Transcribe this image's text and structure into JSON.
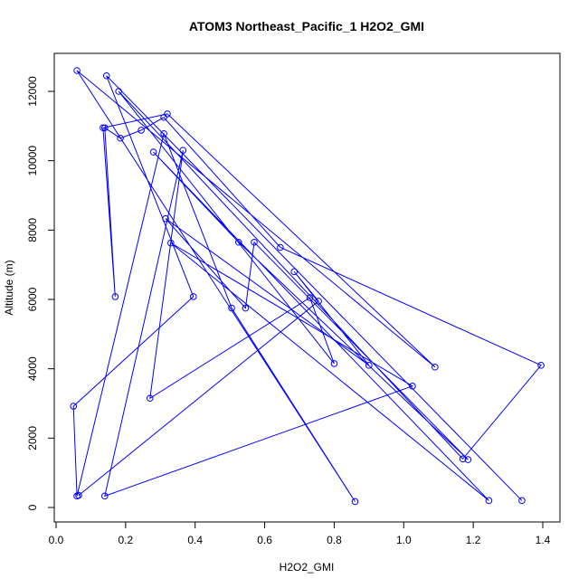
{
  "chart_data": {
    "type": "line",
    "title": "ATOM3 Northeast_Pacific_1 H2O2_GMI",
    "xlabel": "H2O2_GMI",
    "ylabel": "Altitude (m)",
    "xlim": [
      0.0,
      1.4
    ],
    "ylim": [
      0,
      12000
    ],
    "xticks": [
      0.0,
      0.2,
      0.4,
      0.6,
      0.8,
      1.0,
      1.2,
      1.4
    ],
    "xtick_labels": [
      "0.0",
      "0.2",
      "0.4",
      "0.6",
      "0.8",
      "1.0",
      "1.2",
      "1.4"
    ],
    "yticks": [
      0,
      2000,
      4000,
      6000,
      8000,
      10000,
      12000
    ],
    "ytick_labels": [
      "0",
      "2000",
      "4000",
      "6000",
      "8000",
      "10000",
      "12000"
    ],
    "marker": "open-circle",
    "series": [
      {
        "color": "#0000ff",
        "points": [
          {
            "x": 1.34,
            "y": 200
          },
          {
            "x": 0.145,
            "y": 12450
          },
          {
            "x": 0.395,
            "y": 6080
          },
          {
            "x": 0.05,
            "y": 2920
          },
          {
            "x": 0.06,
            "y": 330
          },
          {
            "x": 0.31,
            "y": 10780
          },
          {
            "x": 0.505,
            "y": 5750
          },
          {
            "x": 0.86,
            "y": 170
          },
          {
            "x": 0.06,
            "y": 12600
          },
          {
            "x": 1.09,
            "y": 4050
          },
          {
            "x": 0.32,
            "y": 11350
          },
          {
            "x": 0.135,
            "y": 10950
          },
          {
            "x": 0.17,
            "y": 6080
          },
          {
            "x": 0.14,
            "y": 10950
          },
          {
            "x": 0.185,
            "y": 10650
          },
          {
            "x": 0.245,
            "y": 10880
          },
          {
            "x": 0.31,
            "y": 11250
          },
          {
            "x": 0.645,
            "y": 7500
          },
          {
            "x": 1.395,
            "y": 4100
          },
          {
            "x": 1.17,
            "y": 1400
          },
          {
            "x": 0.18,
            "y": 12000
          },
          {
            "x": 0.8,
            "y": 4150
          },
          {
            "x": 0.73,
            "y": 6050
          },
          {
            "x": 0.27,
            "y": 3150
          },
          {
            "x": 0.365,
            "y": 10300
          },
          {
            "x": 0.14,
            "y": 330
          },
          {
            "x": 1.025,
            "y": 3500
          },
          {
            "x": 0.33,
            "y": 7630
          },
          {
            "x": 1.245,
            "y": 200
          },
          {
            "x": 0.28,
            "y": 10250
          },
          {
            "x": 0.525,
            "y": 7650
          },
          {
            "x": 1.185,
            "y": 1380
          },
          {
            "x": 0.57,
            "y": 7650
          },
          {
            "x": 0.545,
            "y": 5750
          },
          {
            "x": 0.315,
            "y": 8330
          },
          {
            "x": 0.9,
            "y": 4100
          },
          {
            "x": 0.685,
            "y": 6800
          },
          {
            "x": 0.755,
            "y": 5950
          },
          {
            "x": 0.065,
            "y": 350
          }
        ]
      }
    ]
  }
}
